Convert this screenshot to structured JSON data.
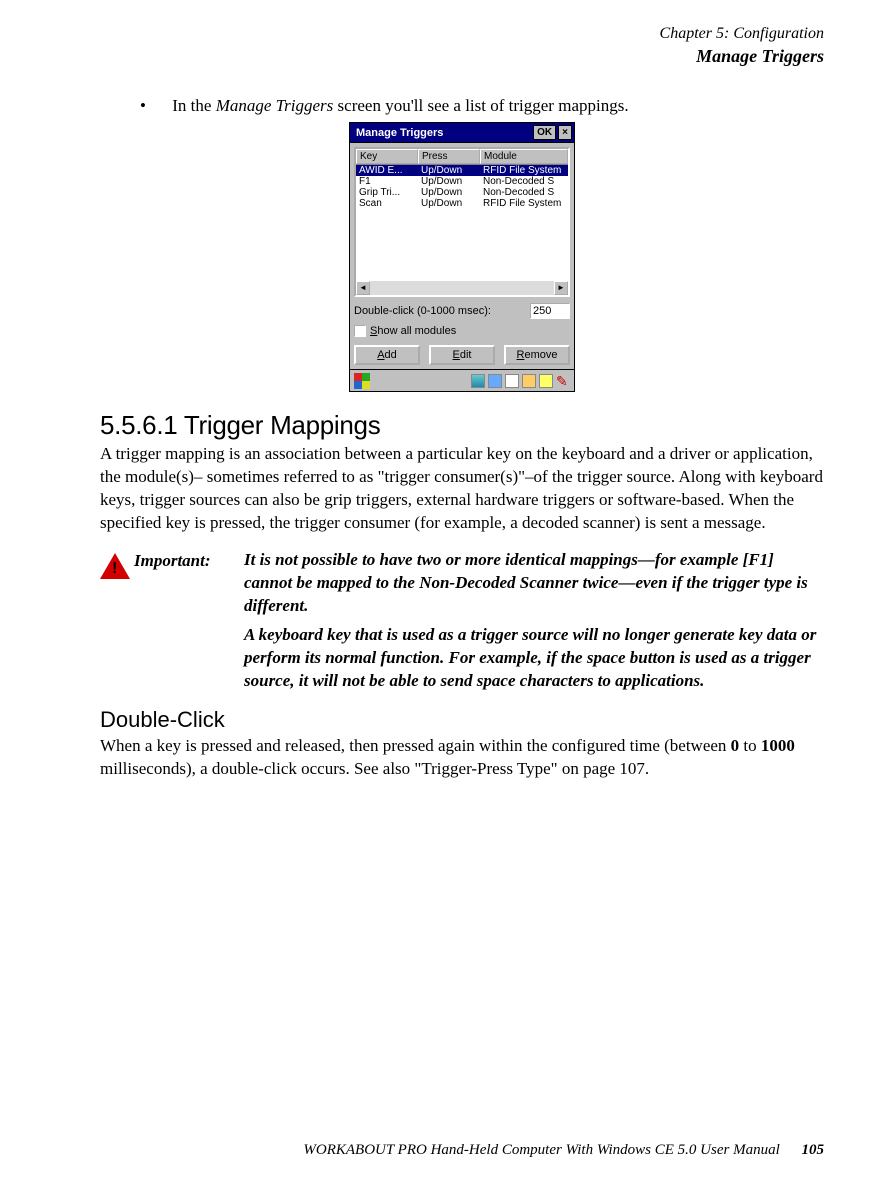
{
  "header": {
    "chapter": "Chapter 5: Configuration",
    "section": "Manage Triggers"
  },
  "intro": {
    "bullet_prefix": "•",
    "text_before": "In the ",
    "italic": "Manage Triggers",
    "text_after": " screen you'll see a list of trigger mappings."
  },
  "window": {
    "title": "Manage Triggers",
    "ok": "OK",
    "close": "×",
    "columns": {
      "key": "Key",
      "press": "Press",
      "module": "Module"
    },
    "rows": [
      {
        "key": "AWID E...",
        "press": "Up/Down",
        "module": "RFID File System",
        "selected": true
      },
      {
        "key": "F1",
        "press": "Up/Down",
        "module": "Non-Decoded S"
      },
      {
        "key": "Grip Tri...",
        "press": "Up/Down",
        "module": "Non-Decoded S"
      },
      {
        "key": "Scan",
        "press": "Up/Down",
        "module": "RFID File System"
      }
    ],
    "dc_label": "Double-click (0-1000 msec):",
    "dc_value": "250",
    "show_all": "Show all modules",
    "buttons": {
      "add": "Add",
      "edit": "Edit",
      "remove": "Remove"
    }
  },
  "section": {
    "num_title": "5.5.6.1    Trigger Mappings",
    "para": "A trigger mapping is an association between a particular key on the keyboard and a driver or application, the module(s)– sometimes referred to as \"trigger consumer(s)\"–of the trigger source. Along with keyboard keys, trigger sources can also be grip triggers, external hardware triggers or software-based. When the specified key is pressed, the trigger consumer (for example, a decoded scanner) is sent a message."
  },
  "important": {
    "label": "Important:",
    "p1": "It is not possible to have two or more identical mappings—for example [F1] cannot be mapped to the Non-Decoded Scanner twice—even if the trigger type is different.",
    "p2": "A keyboard key that is used as a trigger source will no longer generate key data or perform its normal function. For example, if the space button is used as a trigger source, it will not be able to send space characters to applications."
  },
  "double_click": {
    "heading": "Double-Click",
    "para_a": "When a key is pressed and released, then pressed again within the configured time (between ",
    "zero": "0",
    "para_b": " to ",
    "thousand": "1000",
    "para_c": " milliseconds), a double-click occurs. See also \"Trigger-Press Type\" on page 107."
  },
  "footer": {
    "text": "WORKABOUT PRO Hand-Held Computer With Windows CE 5.0 User Manual",
    "page": "105"
  }
}
